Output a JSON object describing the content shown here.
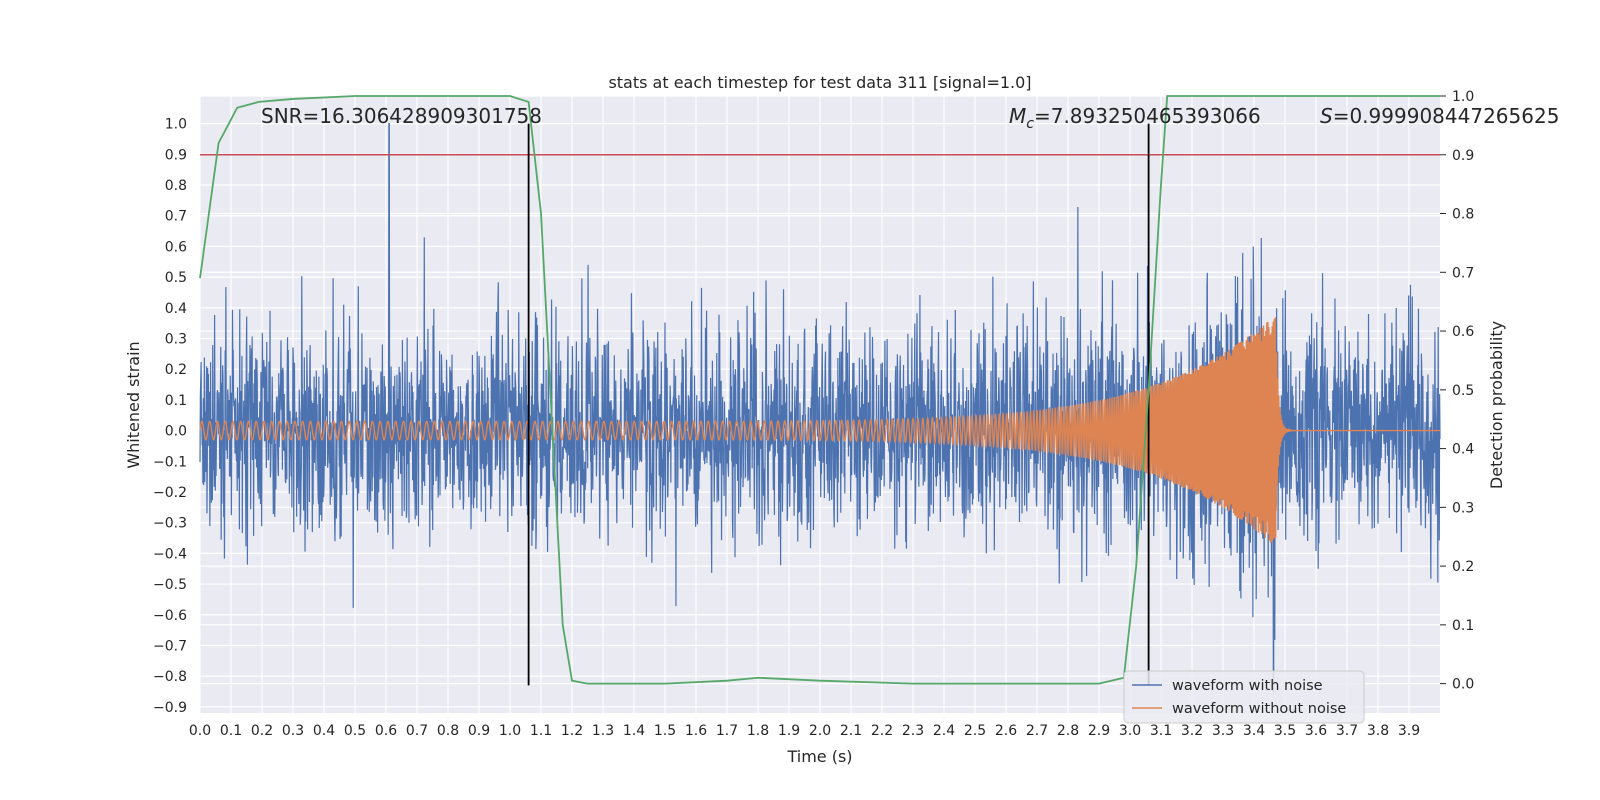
{
  "chart_data": {
    "type": "line",
    "title": "stats at each timestep for test data 311 [signal=1.0]",
    "xlabel": "Time (s)",
    "ylabel": "Whitened strain",
    "y2label": "Detection probability",
    "xlim": [
      0.0,
      4.0
    ],
    "ylim": [
      -0.92,
      1.09
    ],
    "y2lim": [
      -0.05,
      1.0
    ],
    "xticks": [
      "0.0",
      "0.1",
      "0.2",
      "0.3",
      "0.4",
      "0.5",
      "0.6",
      "0.7",
      "0.8",
      "0.9",
      "1.0",
      "1.1",
      "1.2",
      "1.3",
      "1.4",
      "1.5",
      "1.6",
      "1.7",
      "1.8",
      "1.9",
      "2.0",
      "2.1",
      "2.2",
      "2.3",
      "2.4",
      "2.5",
      "2.6",
      "2.7",
      "2.8",
      "2.9",
      "3.0",
      "3.1",
      "3.2",
      "3.3",
      "3.4",
      "3.5",
      "3.6",
      "3.7",
      "3.8",
      "3.9"
    ],
    "yticks": [
      "1.0",
      "0.9",
      "0.8",
      "0.7",
      "0.6",
      "0.5",
      "0.4",
      "0.3",
      "0.2",
      "0.1",
      "0.0",
      "−0.1",
      "−0.2",
      "−0.3",
      "−0.4",
      "−0.5",
      "−0.6",
      "−0.7",
      "−0.8",
      "−0.9"
    ],
    "y2ticks": [
      "1.0",
      "0.9",
      "0.8",
      "0.7",
      "0.6",
      "0.5",
      "0.4",
      "0.3",
      "0.2",
      "0.1",
      "0.0"
    ],
    "series": [
      {
        "name": "waveform with noise",
        "color": "#4c72b0",
        "description": "whitened noisy strain, amplitude roughly within ±0.45 with spikes to about 1.0 near t=0.61 and -0.85 near t=3.46"
      },
      {
        "name": "waveform without noise",
        "color": "#dd8452",
        "chirp": {
          "start_freq_hz": 40,
          "end_freq_hz": 300,
          "merger_time_s": 3.47,
          "start_amplitude": 0.03,
          "peak_amplitude": 0.38
        }
      },
      {
        "name": "detection probability",
        "color": "#55a868",
        "axis": "right",
        "x": [
          0.0,
          0.06,
          0.12,
          0.19,
          0.3,
          0.5,
          0.75,
          1.0,
          1.06,
          1.1,
          1.14,
          1.17,
          1.2,
          1.25,
          1.5,
          1.7,
          1.8,
          2.0,
          2.3,
          2.6,
          2.9,
          2.98,
          3.02,
          3.06,
          3.1,
          3.12,
          3.5,
          4.0
        ],
        "y": [
          0.69,
          0.92,
          0.98,
          0.99,
          0.995,
          1.0,
          1.0,
          1.0,
          0.99,
          0.8,
          0.4,
          0.1,
          0.005,
          0.0,
          0.0,
          0.005,
          0.01,
          0.005,
          0.0,
          0.0,
          0.0,
          0.01,
          0.2,
          0.5,
          0.85,
          1.0,
          1.0,
          1.0
        ]
      }
    ],
    "threshold_line": {
      "value_y2": 0.9,
      "color": "#c44e52"
    },
    "vlines": [
      {
        "x": 1.06,
        "y_range": [
          -0.83,
          1.0
        ],
        "color": "#000000"
      },
      {
        "x": 3.06,
        "y_range": [
          -0.83,
          1.0
        ],
        "color": "#000000"
      }
    ],
    "annotations": [
      {
        "text": "SNR=16.306428909301758",
        "x": 0.2,
        "y": 1.02
      },
      {
        "text_prefix": "M",
        "text_sub": "c",
        "text": "=7.893250465393066",
        "x": 2.6,
        "y": 1.02
      },
      {
        "text_prefix": "S",
        "text": "=0.999908447265625",
        "x": 3.6,
        "y": 1.02
      }
    ],
    "legend": {
      "location": "lower-right",
      "entries": [
        "waveform with noise",
        "waveform without noise"
      ]
    },
    "grid": true
  }
}
